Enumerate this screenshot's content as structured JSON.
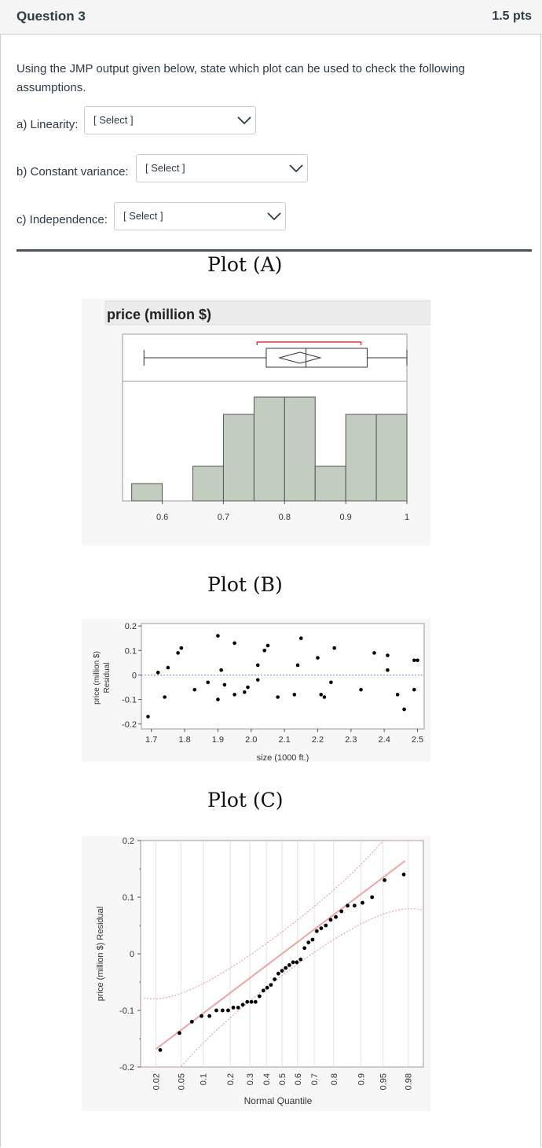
{
  "question": {
    "title": "Question 3",
    "points": "1.5 pts",
    "prompt": "Using the JMP output given below, state which plot can be used to check the following assumptions.",
    "items": [
      {
        "label": "a) Linearity:",
        "selected": "[ Select ]"
      },
      {
        "label": "b) Constant variance:",
        "selected": "[ Select ]"
      },
      {
        "label": "c) Independence:",
        "selected": "[ Select ]"
      }
    ]
  },
  "icons": {
    "dropdown": "chevron-down-icon"
  },
  "colors": {
    "histogram_bar": "#c2cdbf",
    "fit_line": "#f2a3a3",
    "confidence_band": "#f2a3a3",
    "zero_line": "#6f8ff0",
    "mean_bracket": "#e03c3c"
  },
  "chart_data": [
    {
      "type": "bar",
      "panel_caption": "Plot (A)",
      "title": "price (million $)",
      "x_tick_labels": [
        "0.6",
        "0.7",
        "0.8",
        "0.9",
        "1"
      ],
      "bins": [
        {
          "from": 0.55,
          "to": 0.6,
          "count": 1
        },
        {
          "from": 0.6,
          "to": 0.65,
          "count": 0
        },
        {
          "from": 0.65,
          "to": 0.7,
          "count": 2
        },
        {
          "from": 0.7,
          "to": 0.75,
          "count": 5
        },
        {
          "from": 0.75,
          "to": 0.8,
          "count": 6
        },
        {
          "from": 0.8,
          "to": 0.85,
          "count": 6
        },
        {
          "from": 0.85,
          "to": 0.9,
          "count": 2
        },
        {
          "from": 0.9,
          "to": 0.95,
          "count": 5
        },
        {
          "from": 0.95,
          "to": 1.0,
          "count": 5
        }
      ],
      "boxplot": {
        "min": 0.57,
        "q1": 0.77,
        "median": 0.835,
        "q3": 0.935,
        "max": 1.0,
        "mean": 0.825
      },
      "xlim": [
        0.535,
        1.0
      ]
    },
    {
      "type": "scatter",
      "panel_caption": "Plot (B)",
      "xlabel": "size (1000 ft.)",
      "ylabel": "price (million $)\nResidual",
      "x_tick_labels": [
        "1.7",
        "1.8",
        "1.9",
        "2.0",
        "2.1",
        "2.2",
        "2.3",
        "2.4",
        "2.5"
      ],
      "y_tick_labels": [
        "0.2",
        "0.1",
        "0",
        "-0.1",
        "-0.2"
      ],
      "xlim": [
        1.67,
        2.52
      ],
      "ylim": [
        -0.22,
        0.21
      ],
      "points": [
        [
          1.69,
          -0.17
        ],
        [
          1.72,
          0.01
        ],
        [
          1.74,
          -0.09
        ],
        [
          1.75,
          0.03
        ],
        [
          1.78,
          0.09
        ],
        [
          1.79,
          0.11
        ],
        [
          1.83,
          -0.06
        ],
        [
          1.87,
          -0.03
        ],
        [
          1.9,
          0.16
        ],
        [
          1.9,
          -0.1
        ],
        [
          1.91,
          0.02
        ],
        [
          1.92,
          -0.04
        ],
        [
          1.95,
          0.13
        ],
        [
          1.95,
          -0.08
        ],
        [
          1.98,
          -0.07
        ],
        [
          1.99,
          -0.05
        ],
        [
          2.02,
          0.04
        ],
        [
          2.02,
          -0.02
        ],
        [
          2.04,
          0.1
        ],
        [
          2.05,
          0.12
        ],
        [
          2.08,
          -0.09
        ],
        [
          2.13,
          -0.08
        ],
        [
          2.14,
          0.04
        ],
        [
          2.15,
          0.15
        ],
        [
          2.2,
          0.07
        ],
        [
          2.21,
          -0.08
        ],
        [
          2.22,
          -0.09
        ],
        [
          2.24,
          -0.03
        ],
        [
          2.25,
          0.11
        ],
        [
          2.33,
          -0.06
        ],
        [
          2.37,
          0.09
        ],
        [
          2.41,
          0.02
        ],
        [
          2.41,
          0.08
        ],
        [
          2.44,
          -0.08
        ],
        [
          2.46,
          -0.14
        ],
        [
          2.49,
          -0.06
        ],
        [
          2.49,
          0.06
        ],
        [
          2.5,
          0.06
        ]
      ]
    },
    {
      "type": "scatter",
      "panel_caption": "Plot (C)",
      "xlabel": "Normal Quantile",
      "ylabel": "price (million $) Residual",
      "x_tick_labels": [
        "0.02",
        "0.05",
        "0.1",
        "0.2",
        "0.3",
        "0.4",
        "0.5",
        "0.6",
        "0.7",
        "0.8",
        "0.9",
        "0.95",
        "0.98"
      ],
      "y_tick_labels": [
        "0.2",
        "0.1",
        "0",
        "-0.1",
        "-0.2"
      ],
      "xlim": [
        -2.3,
        2.3
      ],
      "ylim": [
        -0.2,
        0.2
      ],
      "residuals": [
        -0.17,
        -0.14,
        -0.12,
        -0.11,
        -0.11,
        -0.1,
        -0.1,
        -0.1,
        -0.095,
        -0.095,
        -0.09,
        -0.085,
        -0.085,
        -0.085,
        -0.075,
        -0.065,
        -0.06,
        -0.055,
        -0.045,
        -0.035,
        -0.03,
        -0.025,
        -0.02,
        -0.015,
        -0.015,
        -0.01,
        0.01,
        0.02,
        0.025,
        0.04,
        0.045,
        0.05,
        0.06,
        0.065,
        0.075,
        0.085,
        0.085,
        0.09,
        0.1,
        0.13,
        0.14
      ]
    }
  ]
}
